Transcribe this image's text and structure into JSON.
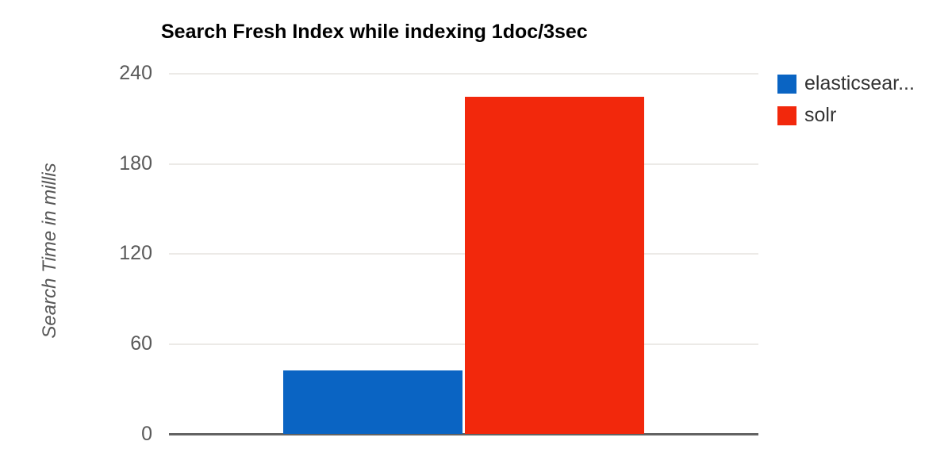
{
  "chart_data": {
    "type": "bar",
    "title": "Search Fresh Index while indexing 1doc/3sec",
    "xlabel": "",
    "ylabel": "Search Time in millis",
    "ylim": [
      0,
      240
    ],
    "yticks": [
      0,
      60,
      120,
      180,
      240
    ],
    "grid": true,
    "legend_position": "right",
    "categories": [
      ""
    ],
    "series": [
      {
        "name": "elasticsear...",
        "legend_label": "elasticsear...",
        "values": [
          42
        ],
        "color": "#0a64c3"
      },
      {
        "name": "solr",
        "legend_label": "solr",
        "values": [
          224
        ],
        "color": "#f2280c"
      }
    ],
    "colors": {
      "gridline": "#eceae7",
      "axis_line": "#636363",
      "tick_label": "#5a5a5a",
      "title_text": "#000000",
      "legend_text": "#333333",
      "background": "#ffffff"
    }
  }
}
